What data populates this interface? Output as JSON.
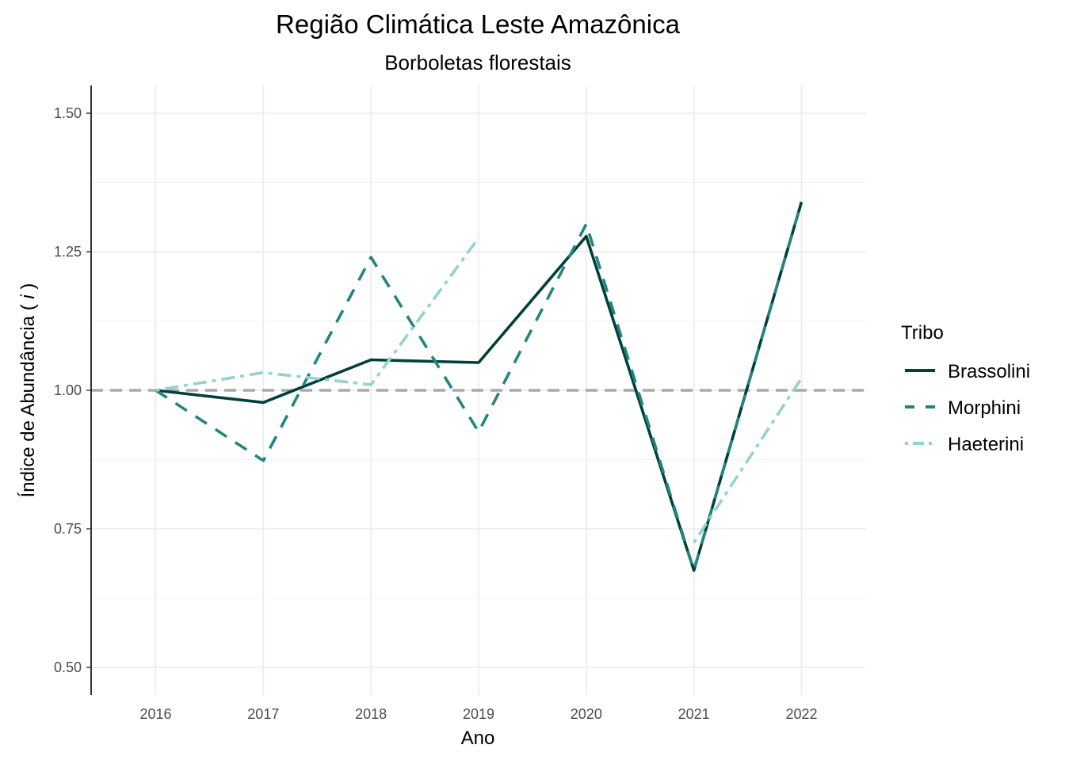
{
  "chart_data": {
    "type": "line",
    "title": "Região Climática Leste Amazônica",
    "subtitle": "Borboletas florestais",
    "xlabel": "Ano",
    "ylabel_prefix": "Índice de Abundância ( ",
    "ylabel_italic": "i",
    "ylabel_suffix": " )",
    "x": [
      2016,
      2017,
      2018,
      2019,
      2020,
      2021,
      2022
    ],
    "x_tick_labels": [
      "2016",
      "2017",
      "2018",
      "2019",
      "2020",
      "2021",
      "2022"
    ],
    "ylim": [
      0.45,
      1.55
    ],
    "y_ticks": [
      0.5,
      0.75,
      1.0,
      1.25,
      1.5
    ],
    "y_tick_labels": [
      "0.50",
      "0.75",
      "1.00",
      "1.25",
      "1.50"
    ],
    "reference_line": {
      "y": 1.0,
      "color": "#a9a9a9",
      "style": "dashed"
    },
    "grid": true,
    "legend": {
      "title": "Tribo",
      "position": "right"
    },
    "series": [
      {
        "name": "Brassolini",
        "color": "#00403a",
        "dash": "solid",
        "values": [
          1.0,
          0.978,
          1.055,
          1.05,
          1.278,
          0.675,
          1.34
        ]
      },
      {
        "name": "Morphini",
        "color": "#228580",
        "dash": "dashed",
        "values": [
          1.0,
          0.873,
          1.24,
          0.925,
          1.3,
          0.675,
          1.34
        ]
      },
      {
        "name": "Haeterini",
        "color": "#93d3cd",
        "dash": "dotdash",
        "values": [
          1.0,
          1.032,
          1.01,
          1.275,
          null,
          0.725,
          1.022
        ]
      }
    ]
  }
}
